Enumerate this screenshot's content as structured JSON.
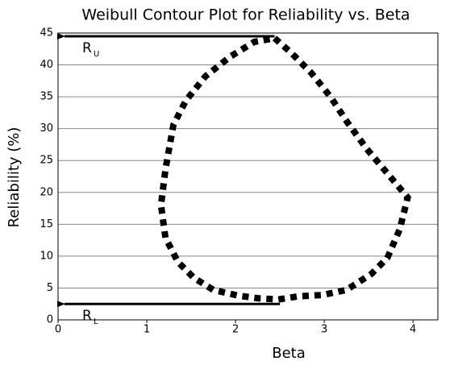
{
  "chart_data": {
    "type": "line",
    "title": "Weibull Contour Plot for Reliability vs. Beta",
    "xlabel": "Beta",
    "ylabel": "Reliability (%)",
    "xlim": [
      0,
      4.28
    ],
    "ylim": [
      0,
      45
    ],
    "xticks": [
      0,
      1,
      2,
      3,
      4
    ],
    "yticks": [
      0,
      5,
      10,
      15,
      20,
      25,
      30,
      35,
      40,
      45
    ],
    "grid": true,
    "series": [
      {
        "color": "#000000",
        "x": [
          2.44,
          2.62,
          2.85,
          3.07,
          3.25,
          3.48,
          3.71,
          3.94,
          3.85,
          3.71,
          3.53,
          3.25,
          2.98,
          2.71,
          2.48,
          2.25,
          2.03,
          1.75,
          1.53,
          1.35,
          1.21,
          1.16,
          1.21,
          1.3,
          1.44,
          1.66,
          1.94,
          2.21,
          2.44
        ],
        "values": [
          44.2,
          42,
          38.8,
          35,
          31.2,
          26.8,
          23,
          19.2,
          14.2,
          9.7,
          7.2,
          4.7,
          3.9,
          3.7,
          3.2,
          3.4,
          3.8,
          4.7,
          6.6,
          9.1,
          12.9,
          18,
          23.6,
          30.6,
          34.4,
          38.2,
          41.3,
          43.6,
          44.2
        ]
      }
    ],
    "annotations": [
      {
        "text": "R",
        "sub": "U",
        "x": 2.44,
        "y": 44.5
      },
      {
        "text": "R",
        "sub": "L",
        "x": 2.5,
        "y": 2.5
      }
    ]
  }
}
